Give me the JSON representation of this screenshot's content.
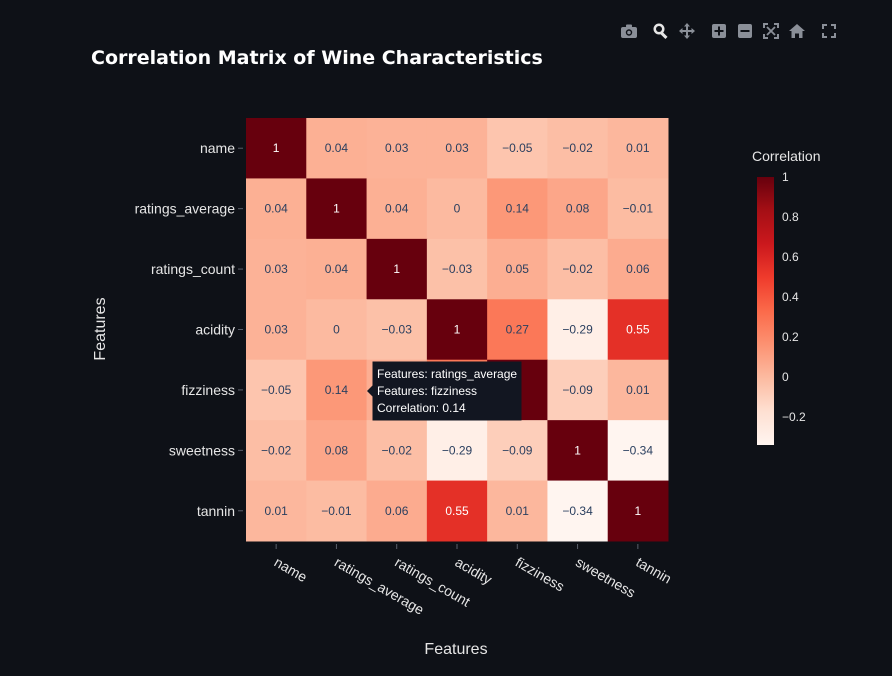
{
  "toolbar": {
    "icons": [
      "camera-icon",
      "zoom-icon",
      "pan-icon",
      "zoom-in-icon",
      "zoom-out-icon",
      "autoscale-icon",
      "reset-axes-icon",
      "fullscreen-icon"
    ]
  },
  "colors": {
    "background": "#0e1117",
    "text": "#e6e6e6",
    "title": "#ffffff",
    "scale_low": "#fff5f0",
    "scale_high": "#67000d"
  },
  "chart_data": {
    "type": "heatmap",
    "title": "Correlation Matrix of Wine Characteristics",
    "xlabel": "Features",
    "ylabel": "Features",
    "x": [
      "name",
      "ratings_average",
      "ratings_count",
      "acidity",
      "fizziness",
      "sweetness",
      "tannin"
    ],
    "y": [
      "name",
      "ratings_average",
      "ratings_count",
      "acidity",
      "fizziness",
      "sweetness",
      "tannin"
    ],
    "z": [
      [
        1,
        0.04,
        0.03,
        0.03,
        -0.05,
        -0.02,
        0.01
      ],
      [
        0.04,
        1,
        0.04,
        0,
        0.14,
        0.08,
        -0.01
      ],
      [
        0.03,
        0.04,
        1,
        -0.03,
        0.05,
        -0.02,
        0.06
      ],
      [
        0.03,
        0,
        -0.03,
        1,
        0.27,
        -0.29,
        0.55
      ],
      [
        -0.05,
        0.14,
        0.05,
        0.27,
        1,
        -0.09,
        0.01
      ],
      [
        -0.02,
        0.08,
        -0.02,
        -0.29,
        -0.09,
        1,
        -0.34
      ],
      [
        0.01,
        -0.01,
        0.06,
        0.55,
        0.01,
        -0.34,
        1
      ]
    ],
    "text": [
      [
        "1",
        "0.04",
        "0.03",
        "0.03",
        "−0.05",
        "−0.02",
        "0.01"
      ],
      [
        "0.04",
        "1",
        "0.04",
        "0",
        "0.14",
        "0.08",
        "−0.01"
      ],
      [
        "0.03",
        "0.04",
        "1",
        "−0.03",
        "0.05",
        "−0.02",
        "0.06"
      ],
      [
        "0.03",
        "0",
        "−0.03",
        "1",
        "0.27",
        "−0.29",
        "0.55"
      ],
      [
        "−0.05",
        "0.14",
        "",
        "",
        "",
        "−0.09",
        "0.01"
      ],
      [
        "−0.02",
        "0.08",
        "−0.02",
        "−0.29",
        "−0.09",
        "1",
        "−0.34"
      ],
      [
        "0.01",
        "−0.01",
        "0.06",
        "0.55",
        "0.01",
        "−0.34",
        "1"
      ]
    ],
    "zmin": -0.34,
    "zmax": 1,
    "colorscale": "Reds",
    "colorbar": {
      "title": "Correlation",
      "tickvals": [
        1,
        0.8,
        0.6,
        0.4,
        0.2,
        0,
        -0.2
      ],
      "ticktext": [
        "1",
        "0.8",
        "0.6",
        "0.4",
        "0.2",
        "0",
        "−0.2"
      ]
    },
    "hover": {
      "lines": [
        "Features: ratings_average",
        "Features: fizziness",
        "Correlation: 0.14"
      ]
    }
  }
}
